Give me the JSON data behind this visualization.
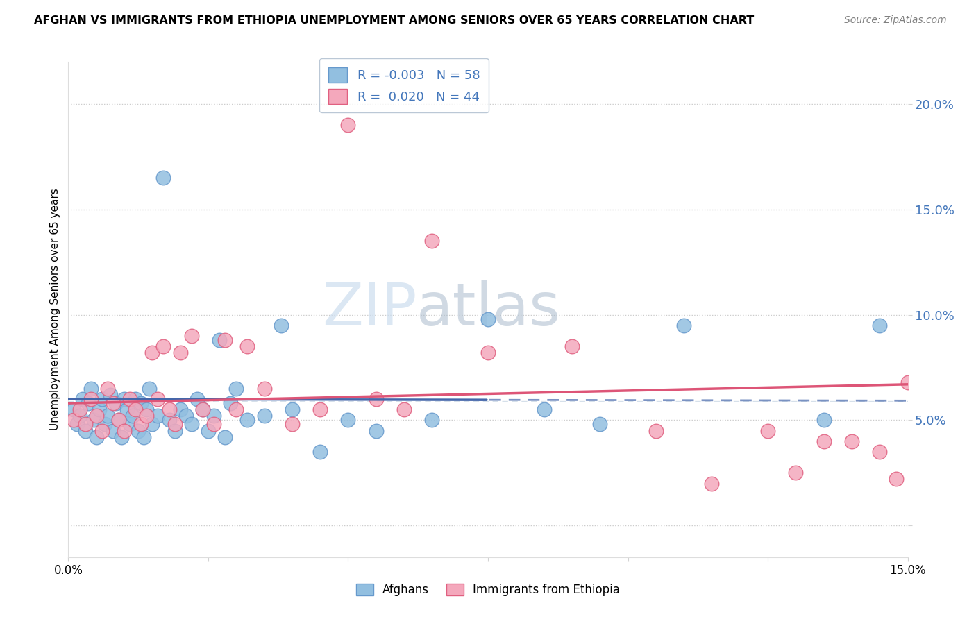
{
  "title": "AFGHAN VS IMMIGRANTS FROM ETHIOPIA UNEMPLOYMENT AMONG SENIORS OVER 65 YEARS CORRELATION CHART",
  "source": "Source: ZipAtlas.com",
  "ylabel": "Unemployment Among Seniors over 65 years",
  "xlim": [
    0.0,
    15.0
  ],
  "ylim": [
    -1.5,
    22.0
  ],
  "ytick_positions": [
    0.0,
    5.0,
    10.0,
    15.0,
    20.0
  ],
  "ytick_labels": [
    "",
    "5.0%",
    "10.0%",
    "15.0%",
    "20.0%"
  ],
  "xtick_positions": [
    0.0,
    2.5,
    5.0,
    7.5,
    10.0,
    12.5,
    15.0
  ],
  "xtick_labels": [
    "0.0%",
    "",
    "",
    "",
    "",
    "",
    "15.0%"
  ],
  "legend_afghan_R": "-0.003",
  "legend_afghan_N": "58",
  "legend_ethiopia_R": "0.020",
  "legend_ethiopia_N": "44",
  "color_afghan": "#92BFE0",
  "color_ethiopia": "#F4A8BC",
  "color_edge_afghan": "#6699CC",
  "color_edge_ethiopia": "#E06080",
  "color_line_afghan": "#4466AA",
  "color_line_ethiopia": "#DD5577",
  "watermark_zip": "ZIP",
  "watermark_atlas": "atlas",
  "afghan_x": [
    0.1,
    0.15,
    0.2,
    0.25,
    0.3,
    0.35,
    0.4,
    0.45,
    0.5,
    0.55,
    0.6,
    0.65,
    0.7,
    0.75,
    0.8,
    0.85,
    0.9,
    0.95,
    1.0,
    1.05,
    1.1,
    1.15,
    1.2,
    1.25,
    1.3,
    1.35,
    1.4,
    1.45,
    1.5,
    1.6,
    1.7,
    1.8,
    1.9,
    2.0,
    2.1,
    2.2,
    2.3,
    2.4,
    2.5,
    2.6,
    2.7,
    2.8,
    2.9,
    3.0,
    3.2,
    3.5,
    3.8,
    4.0,
    4.5,
    5.0,
    5.5,
    6.5,
    7.5,
    8.5,
    9.5,
    11.0,
    13.5,
    14.5
  ],
  "afghan_y": [
    5.5,
    4.8,
    5.2,
    6.0,
    4.5,
    5.8,
    6.5,
    5.0,
    4.2,
    5.5,
    6.0,
    4.8,
    5.2,
    6.2,
    4.5,
    5.8,
    5.0,
    4.2,
    6.0,
    5.5,
    4.8,
    5.2,
    6.0,
    4.5,
    5.8,
    4.2,
    5.5,
    6.5,
    4.8,
    5.2,
    16.5,
    5.0,
    4.5,
    5.5,
    5.2,
    4.8,
    6.0,
    5.5,
    4.5,
    5.2,
    8.8,
    4.2,
    5.8,
    6.5,
    5.0,
    5.2,
    9.5,
    5.5,
    3.5,
    5.0,
    4.5,
    5.0,
    9.8,
    5.5,
    4.8,
    9.5,
    5.0,
    9.5
  ],
  "ethiopia_x": [
    0.1,
    0.2,
    0.3,
    0.4,
    0.5,
    0.6,
    0.7,
    0.8,
    0.9,
    1.0,
    1.1,
    1.2,
    1.3,
    1.4,
    1.5,
    1.6,
    1.7,
    1.8,
    1.9,
    2.0,
    2.2,
    2.4,
    2.6,
    2.8,
    3.0,
    3.2,
    3.5,
    4.0,
    4.5,
    5.0,
    5.5,
    6.0,
    6.5,
    7.5,
    9.0,
    10.5,
    11.5,
    12.5,
    13.0,
    13.5,
    14.0,
    14.5,
    14.8,
    15.0
  ],
  "ethiopia_y": [
    5.0,
    5.5,
    4.8,
    6.0,
    5.2,
    4.5,
    6.5,
    5.8,
    5.0,
    4.5,
    6.0,
    5.5,
    4.8,
    5.2,
    8.2,
    6.0,
    8.5,
    5.5,
    4.8,
    8.2,
    9.0,
    5.5,
    4.8,
    8.8,
    5.5,
    8.5,
    6.5,
    4.8,
    5.5,
    19.0,
    6.0,
    5.5,
    13.5,
    8.2,
    8.5,
    4.5,
    2.0,
    4.5,
    2.5,
    4.0,
    4.0,
    3.5,
    2.2,
    6.8
  ]
}
